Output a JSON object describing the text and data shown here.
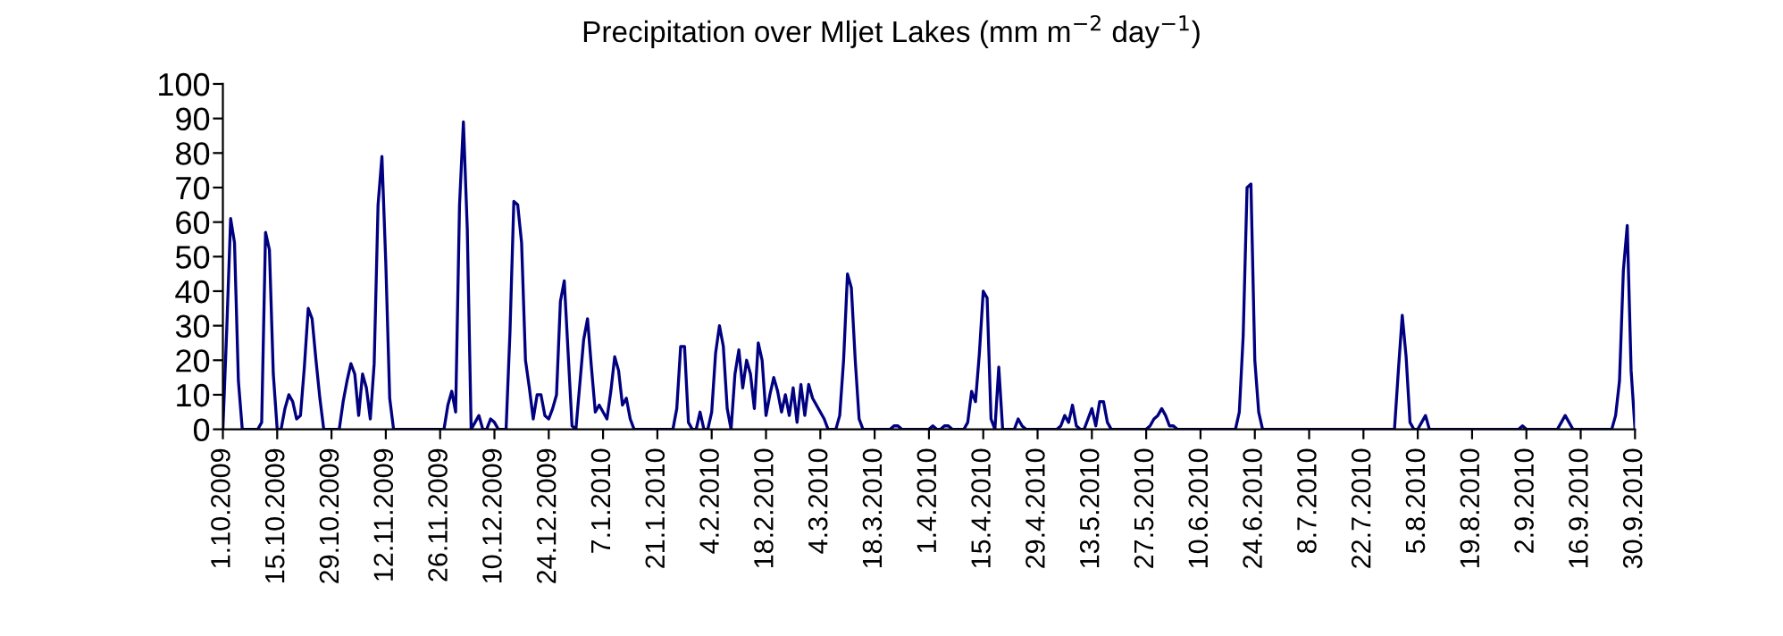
{
  "chart_data": {
    "type": "line",
    "title": "Precipitation over Mljet Lakes (mm m$^{−2}$ day$^{−1}$)",
    "x": [
      "2009-10-01",
      "2009-10-02",
      "2009-10-03",
      "2009-10-04",
      "2009-10-05",
      "2009-10-06",
      "2009-10-10",
      "2009-10-11",
      "2009-10-12",
      "2009-10-13",
      "2009-10-14",
      "2009-10-15",
      "2009-10-16",
      "2009-10-17",
      "2009-10-18",
      "2009-10-19",
      "2009-10-20",
      "2009-10-21",
      "2009-10-22",
      "2009-10-23",
      "2009-10-24",
      "2009-10-25",
      "2009-10-26",
      "2009-10-27",
      "2009-10-31",
      "2009-11-01",
      "2009-11-02",
      "2009-11-03",
      "2009-11-04",
      "2009-11-05",
      "2009-11-06",
      "2009-11-07",
      "2009-11-08",
      "2009-11-09",
      "2009-11-10",
      "2009-11-11",
      "2009-11-12",
      "2009-11-13",
      "2009-11-14",
      "2009-11-27",
      "2009-11-28",
      "2009-11-29",
      "2009-11-30",
      "2009-12-01",
      "2009-12-02",
      "2009-12-03",
      "2009-12-04",
      "2009-12-05",
      "2009-12-06",
      "2009-12-07",
      "2009-12-08",
      "2009-12-09",
      "2009-12-10",
      "2009-12-11",
      "2009-12-13",
      "2009-12-14",
      "2009-12-15",
      "2009-12-16",
      "2009-12-17",
      "2009-12-18",
      "2009-12-19",
      "2009-12-20",
      "2009-12-21",
      "2009-12-22",
      "2009-12-23",
      "2009-12-24",
      "2009-12-25",
      "2009-12-26",
      "2009-12-27",
      "2009-12-28",
      "2009-12-29",
      "2009-12-30",
      "2009-12-31",
      "2010-01-01",
      "2010-01-02",
      "2010-01-03",
      "2010-01-04",
      "2010-01-05",
      "2010-01-06",
      "2010-01-07",
      "2010-01-08",
      "2010-01-09",
      "2010-01-10",
      "2010-01-11",
      "2010-01-12",
      "2010-01-13",
      "2010-01-14",
      "2010-01-15",
      "2010-01-25",
      "2010-01-26",
      "2010-01-27",
      "2010-01-28",
      "2010-01-29",
      "2010-01-30",
      "2010-01-31",
      "2010-02-01",
      "2010-02-02",
      "2010-02-03",
      "2010-02-04",
      "2010-02-05",
      "2010-02-06",
      "2010-02-07",
      "2010-02-08",
      "2010-02-09",
      "2010-02-10",
      "2010-02-11",
      "2010-02-12",
      "2010-02-13",
      "2010-02-14",
      "2010-02-15",
      "2010-02-16",
      "2010-02-17",
      "2010-02-18",
      "2010-02-19",
      "2010-02-20",
      "2010-02-21",
      "2010-02-22",
      "2010-02-23",
      "2010-02-24",
      "2010-02-25",
      "2010-02-26",
      "2010-02-27",
      "2010-02-28",
      "2010-03-01",
      "2010-03-02",
      "2010-03-03",
      "2010-03-04",
      "2010-03-05",
      "2010-03-06",
      "2010-03-08",
      "2010-03-09",
      "2010-03-10",
      "2010-03-11",
      "2010-03-12",
      "2010-03-13",
      "2010-03-14",
      "2010-03-15",
      "2010-03-22",
      "2010-03-23",
      "2010-03-24",
      "2010-03-25",
      "2010-04-01",
      "2010-04-02",
      "2010-04-03",
      "2010-04-04",
      "2010-04-05",
      "2010-04-06",
      "2010-04-07",
      "2010-04-10",
      "2010-04-11",
      "2010-04-12",
      "2010-04-13",
      "2010-04-14",
      "2010-04-15",
      "2010-04-16",
      "2010-04-17",
      "2010-04-18",
      "2010-04-19",
      "2010-04-20",
      "2010-04-23",
      "2010-04-24",
      "2010-04-25",
      "2010-04-26",
      "2010-05-04",
      "2010-05-05",
      "2010-05-06",
      "2010-05-07",
      "2010-05-08",
      "2010-05-09",
      "2010-05-10",
      "2010-05-11",
      "2010-05-12",
      "2010-05-13",
      "2010-05-14",
      "2010-05-15",
      "2010-05-16",
      "2010-05-17",
      "2010-05-18",
      "2010-05-27",
      "2010-05-28",
      "2010-05-29",
      "2010-05-30",
      "2010-05-31",
      "2010-06-01",
      "2010-06-02",
      "2010-06-03",
      "2010-06-04",
      "2010-06-19",
      "2010-06-20",
      "2010-06-21",
      "2010-06-22",
      "2010-06-23",
      "2010-06-24",
      "2010-06-25",
      "2010-06-26",
      "2010-07-30",
      "2010-07-31",
      "2010-08-01",
      "2010-08-02",
      "2010-08-03",
      "2010-08-04",
      "2010-08-05",
      "2010-08-06",
      "2010-08-07",
      "2010-08-08",
      "2010-08-31",
      "2010-09-01",
      "2010-09-02",
      "2010-09-10",
      "2010-09-11",
      "2010-09-12",
      "2010-09-13",
      "2010-09-14",
      "2010-09-24",
      "2010-09-25",
      "2010-09-26",
      "2010-09-27",
      "2010-09-28",
      "2010-09-29",
      "2010-09-30"
    ],
    "series": [
      {
        "color": "#000080",
        "values": [
          0,
          29,
          61,
          54,
          14,
          0,
          0,
          2,
          57,
          52,
          16,
          0,
          0,
          6,
          10,
          8,
          3,
          4,
          18,
          35,
          32,
          20,
          9,
          0,
          0,
          8,
          14,
          19,
          16,
          4,
          16,
          12,
          3,
          19,
          65,
          79,
          48,
          9,
          0,
          0,
          7,
          11,
          5,
          65,
          89,
          58,
          0,
          2,
          4,
          0,
          0,
          3,
          2,
          0,
          0,
          28,
          66,
          65,
          54,
          20,
          12,
          3,
          10,
          10,
          4,
          3,
          6,
          10,
          37,
          43,
          22,
          1,
          0,
          13,
          26,
          32,
          18,
          5,
          7,
          5,
          3,
          11,
          21,
          17,
          7,
          9,
          3,
          0,
          0,
          6,
          24,
          24,
          2,
          0,
          0,
          5,
          0,
          0,
          5,
          22,
          30,
          24,
          6,
          0,
          16,
          23,
          12,
          20,
          16,
          6,
          25,
          20,
          4,
          10,
          15,
          11,
          5,
          10,
          4,
          12,
          2,
          13,
          4,
          13,
          9,
          7,
          5,
          3,
          0,
          0,
          4,
          20,
          45,
          41,
          20,
          3,
          0,
          0,
          1,
          1,
          0,
          0,
          1,
          0,
          0,
          1,
          1,
          0,
          0,
          2,
          11,
          8,
          22,
          40,
          38,
          3,
          0,
          18,
          0,
          0,
          3,
          1,
          0,
          0,
          1,
          4,
          2,
          7,
          1,
          0,
          0,
          3,
          6,
          1,
          8,
          8,
          2,
          0,
          0,
          1,
          3,
          4,
          6,
          4,
          1,
          1,
          0,
          0,
          5,
          27,
          70,
          71,
          20,
          5,
          0,
          0,
          17,
          33,
          21,
          2,
          0,
          0,
          2,
          4,
          0,
          0,
          1,
          0,
          0,
          2,
          4,
          2,
          0,
          0,
          4,
          14,
          46,
          59,
          17,
          0
        ]
      }
    ],
    "xlim": [
      "2009-10-01",
      "2010-09-30"
    ],
    "xticks": [
      {
        "value": "2009-10-01",
        "label": "1.10.2009"
      },
      {
        "value": "2009-10-15",
        "label": "15.10.2009"
      },
      {
        "value": "2009-10-29",
        "label": "29.10.2009"
      },
      {
        "value": "2009-11-12",
        "label": "12.11.2009"
      },
      {
        "value": "2009-11-26",
        "label": "26.11.2009"
      },
      {
        "value": "2009-12-10",
        "label": "10.12.2009"
      },
      {
        "value": "2009-12-24",
        "label": "24.12.2009"
      },
      {
        "value": "2010-01-07",
        "label": "7.1.2010"
      },
      {
        "value": "2010-01-21",
        "label": "21.1.2010"
      },
      {
        "value": "2010-02-04",
        "label": "4.2.2010"
      },
      {
        "value": "2010-02-18",
        "label": "18.2.2010"
      },
      {
        "value": "2010-03-04",
        "label": "4.3.2010"
      },
      {
        "value": "2010-03-18",
        "label": "18.3.2010"
      },
      {
        "value": "2010-04-01",
        "label": "1.4.2010"
      },
      {
        "value": "2010-04-15",
        "label": "15.4.2010"
      },
      {
        "value": "2010-04-29",
        "label": "29.4.2010"
      },
      {
        "value": "2010-05-13",
        "label": "13.5.2010"
      },
      {
        "value": "2010-05-27",
        "label": "27.5.2010"
      },
      {
        "value": "2010-06-10",
        "label": "10.6.2010"
      },
      {
        "value": "2010-06-24",
        "label": "24.6.2010"
      },
      {
        "value": "2010-07-08",
        "label": "8.7.2010"
      },
      {
        "value": "2010-07-22",
        "label": "22.7.2010"
      },
      {
        "value": "2010-08-05",
        "label": "5.8.2010"
      },
      {
        "value": "2010-08-19",
        "label": "19.8.2010"
      },
      {
        "value": "2010-09-02",
        "label": "2.9.2010"
      },
      {
        "value": "2010-09-16",
        "label": "16.9.2010"
      },
      {
        "value": "2010-09-30",
        "label": "30.9.2010"
      }
    ],
    "ylim": [
      0,
      100
    ],
    "yticks": [
      0,
      10,
      20,
      30,
      40,
      50,
      60,
      70,
      80,
      90,
      100
    ],
    "grid": false,
    "marker": "none",
    "line_style": "solid"
  }
}
